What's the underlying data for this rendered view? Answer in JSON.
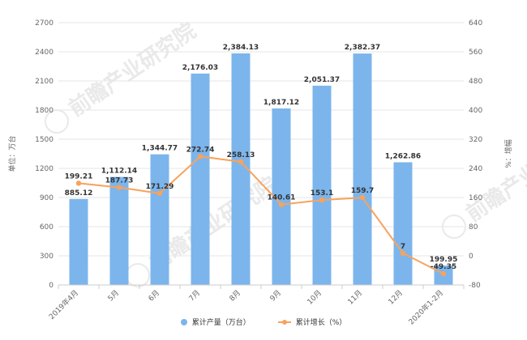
{
  "chart_data": {
    "type": "bar",
    "title": "",
    "xlabel": "",
    "ylabel": "单位：万台",
    "y2label": "%：增幅",
    "categories": [
      "2019年4月",
      "5月",
      "6月",
      "7月",
      "8月",
      "9月",
      "10月",
      "11月",
      "12月",
      "2020年1-2月"
    ],
    "ylim": [
      0,
      2700
    ],
    "y_ticks": [
      0,
      300,
      600,
      900,
      1200,
      1500,
      1800,
      2100,
      2400,
      2700
    ],
    "y2lim": [
      -80,
      640
    ],
    "y2_ticks": [
      -80,
      0,
      80,
      160,
      240,
      320,
      400,
      480,
      560,
      640
    ],
    "series": [
      {
        "name": "累计产量（万台）",
        "type": "bar",
        "axis": "left",
        "values": [
          885.12,
          1112.14,
          1344.77,
          2176.03,
          2384.13,
          1817.12,
          2051.37,
          2382.37,
          1262.86,
          199.95
        ],
        "labels": [
          "885.12",
          "1,112.14",
          "1,344.77",
          "2,176.03",
          "2,384.13",
          "1,817.12",
          "2,051.37",
          "2,382.37",
          "1,262.86",
          "199.95"
        ]
      },
      {
        "name": "累计增长（%）",
        "type": "line",
        "axis": "right",
        "values": [
          199.21,
          187.73,
          171.29,
          272.74,
          258.13,
          140.61,
          153.1,
          159.7,
          7,
          -49.35
        ],
        "labels": [
          "199.21",
          "187.73",
          "171.29",
          "272.74",
          "258.13",
          "140.61",
          "153.1",
          "159.7",
          "7",
          "-49.35"
        ]
      }
    ],
    "grid": true,
    "legend_position": "bottom",
    "colors": {
      "bar": "#7cb5ec",
      "line": "#f7a35c",
      "grid": "#e6e6e6",
      "axis": "#cccccc"
    }
  },
  "watermark": {
    "text": "前瞻产业研究院"
  }
}
